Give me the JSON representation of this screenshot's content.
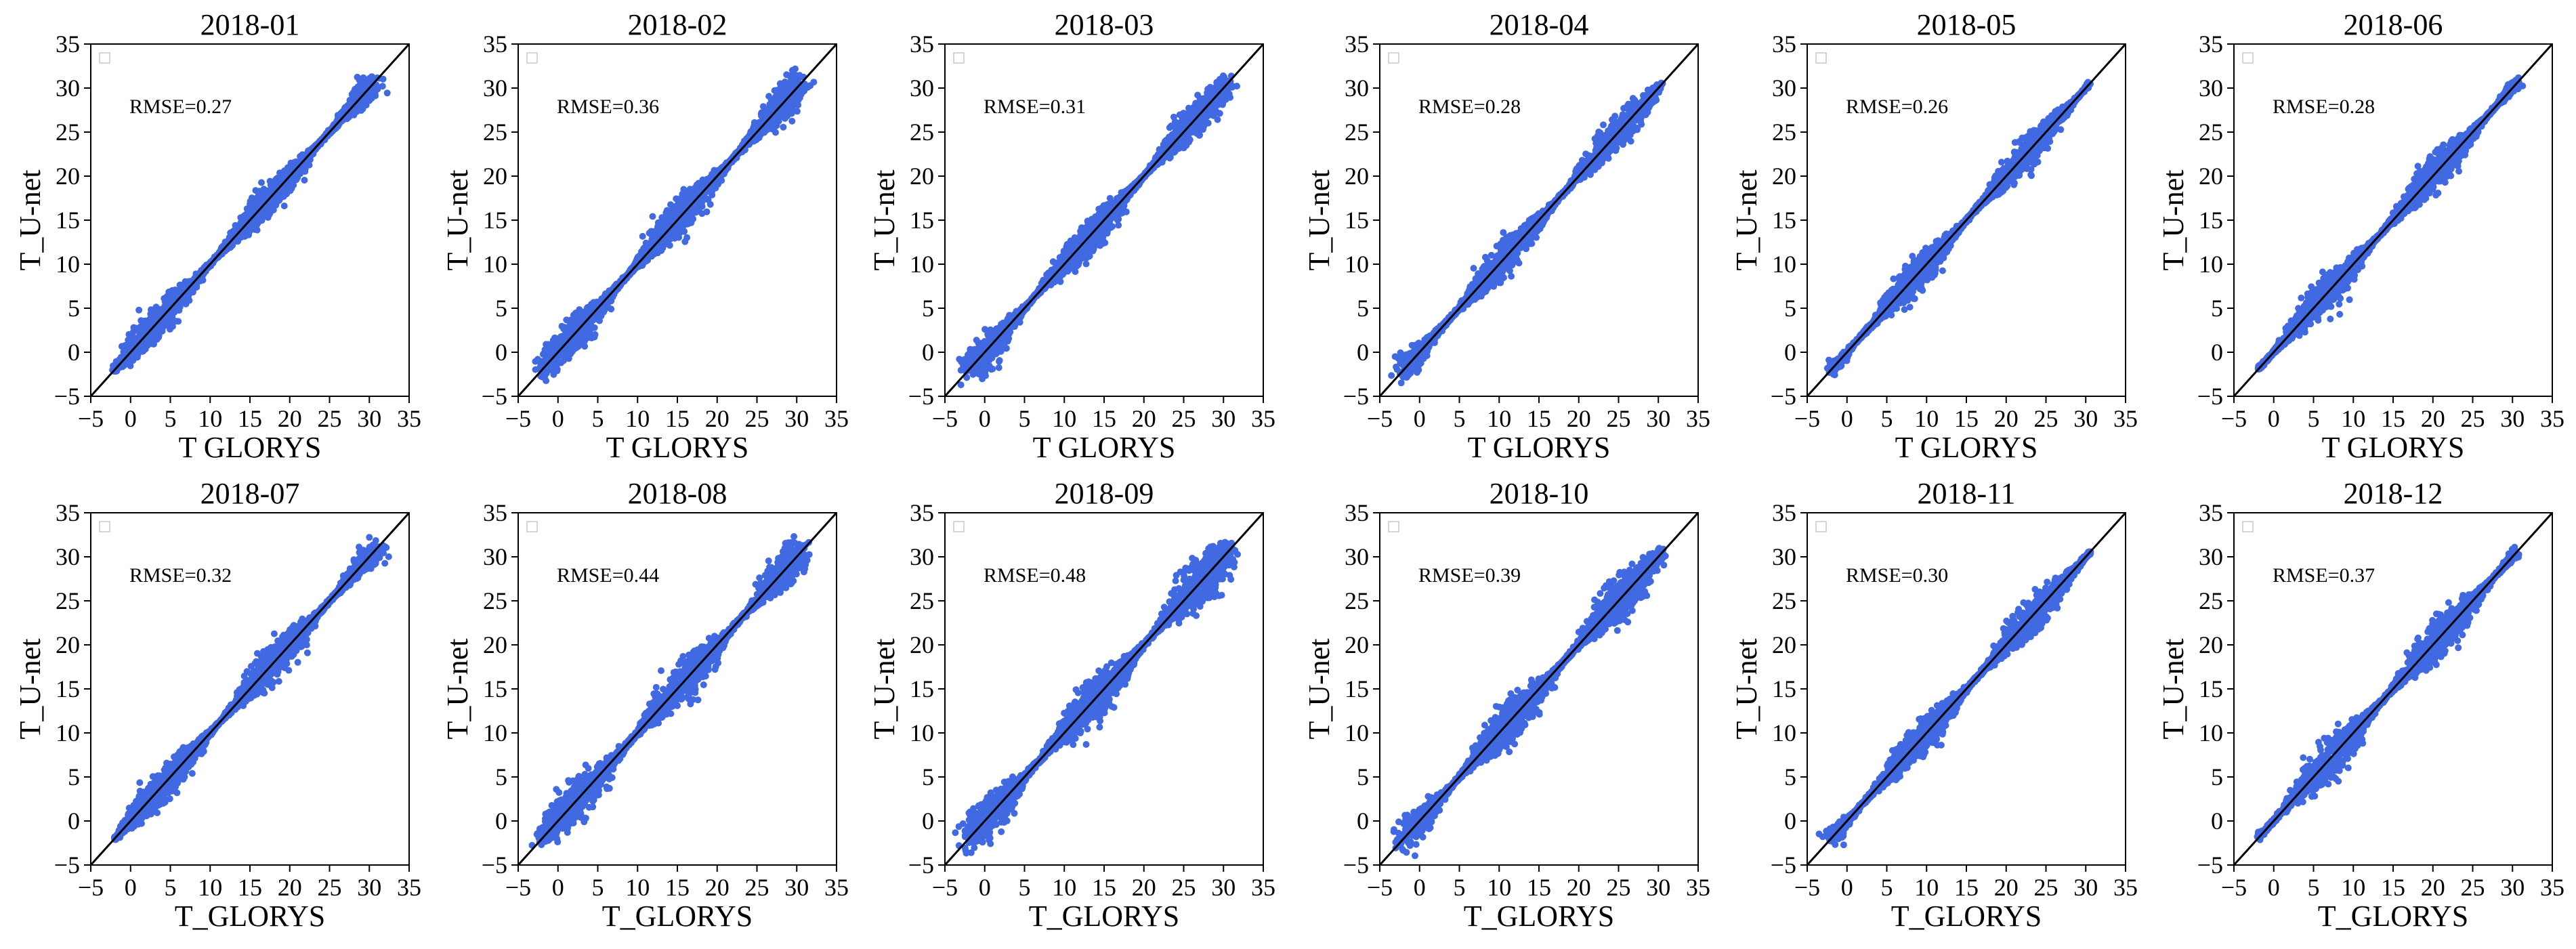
{
  "figure": {
    "colors": {
      "point": "#4169e1",
      "identity_line": "#000000",
      "axes": "#000000"
    }
  },
  "chart_data": [
    {
      "type": "scatter",
      "title": "2018-01",
      "xlabel": "T  GLORYS",
      "ylabel": "T_U-net",
      "annotation": "RMSE=0.27",
      "xlim": [
        -5,
        35
      ],
      "ylim": [
        -5,
        35
      ],
      "xticks": [
        "−5",
        "0",
        "5",
        "10",
        "15",
        "20",
        "25",
        "30",
        "35"
      ],
      "yticks": [
        "−5",
        "0",
        "5",
        "10",
        "15",
        "20",
        "25",
        "30",
        "35"
      ],
      "rmse": 0.27,
      "data_range": [
        -2,
        30.5
      ],
      "reference_line": "y = x",
      "legend": "top-left (empty)",
      "grid": false
    },
    {
      "type": "scatter",
      "title": "2018-02",
      "xlabel": "T  GLORYS",
      "ylabel": "T_U-net",
      "annotation": "RMSE=0.36",
      "xlim": [
        -5,
        35
      ],
      "ylim": [
        -5,
        35
      ],
      "xticks": [
        "−5",
        "0",
        "5",
        "10",
        "15",
        "20",
        "25",
        "30",
        "35"
      ],
      "yticks": [
        "−5",
        "0",
        "5",
        "10",
        "15",
        "20",
        "25",
        "30",
        "35"
      ],
      "rmse": 0.36,
      "data_range": [
        -2,
        30.5
      ],
      "reference_line": "y = x",
      "legend": "top-left (empty)",
      "grid": false
    },
    {
      "type": "scatter",
      "title": "2018-03",
      "xlabel": "T  GLORYS",
      "ylabel": "T_U-net",
      "annotation": "RMSE=0.31",
      "xlim": [
        -5,
        35
      ],
      "ylim": [
        -5,
        35
      ],
      "xticks": [
        "−5",
        "0",
        "5",
        "10",
        "15",
        "20",
        "25",
        "30",
        "35"
      ],
      "yticks": [
        "−5",
        "0",
        "5",
        "10",
        "15",
        "20",
        "25",
        "30",
        "35"
      ],
      "rmse": 0.31,
      "data_range": [
        -2,
        30.5
      ],
      "reference_line": "y = x",
      "legend": "top-left (empty)",
      "grid": false
    },
    {
      "type": "scatter",
      "title": "2018-04",
      "xlabel": "T  GLORYS",
      "ylabel": "T_U-net",
      "annotation": "RMSE=0.28",
      "xlim": [
        -5,
        35
      ],
      "ylim": [
        -5,
        35
      ],
      "xticks": [
        "−5",
        "0",
        "5",
        "10",
        "15",
        "20",
        "25",
        "30",
        "35"
      ],
      "yticks": [
        "−5",
        "0",
        "5",
        "10",
        "15",
        "20",
        "25",
        "30",
        "35"
      ],
      "rmse": 0.28,
      "data_range": [
        -2,
        30.5
      ],
      "reference_line": "y = x",
      "legend": "top-left (empty)",
      "grid": false
    },
    {
      "type": "scatter",
      "title": "2018-05",
      "xlabel": "T  GLORYS",
      "ylabel": "T_U-net",
      "annotation": "RMSE=0.26",
      "xlim": [
        -5,
        35
      ],
      "ylim": [
        -5,
        35
      ],
      "xticks": [
        "−5",
        "0",
        "5",
        "10",
        "15",
        "20",
        "25",
        "30",
        "35"
      ],
      "yticks": [
        "−5",
        "0",
        "5",
        "10",
        "15",
        "20",
        "25",
        "30",
        "35"
      ],
      "rmse": 0.26,
      "data_range": [
        -2,
        30.5
      ],
      "reference_line": "y = x",
      "legend": "top-left (empty)",
      "grid": false
    },
    {
      "type": "scatter",
      "title": "2018-06",
      "xlabel": "T  GLORYS",
      "ylabel": "T_U-net",
      "annotation": "RMSE=0.28",
      "xlim": [
        -5,
        35
      ],
      "ylim": [
        -5,
        35
      ],
      "xticks": [
        "−5",
        "0",
        "5",
        "10",
        "15",
        "20",
        "25",
        "30",
        "35"
      ],
      "yticks": [
        "−5",
        "0",
        "5",
        "10",
        "15",
        "20",
        "25",
        "30",
        "35"
      ],
      "rmse": 0.28,
      "data_range": [
        -2,
        30.5
      ],
      "reference_line": "y = x",
      "legend": "top-left (empty)",
      "grid": false
    },
    {
      "type": "scatter",
      "title": "2018-07",
      "xlabel": "T_GLORYS",
      "ylabel": "T_U-net",
      "annotation": "RMSE=0.32",
      "xlim": [
        -5,
        35
      ],
      "ylim": [
        -5,
        35
      ],
      "xticks": [
        "−5",
        "0",
        "5",
        "10",
        "15",
        "20",
        "25",
        "30",
        "35"
      ],
      "yticks": [
        "−5",
        "0",
        "5",
        "10",
        "15",
        "20",
        "25",
        "30",
        "35"
      ],
      "rmse": 0.32,
      "data_range": [
        -2,
        31
      ],
      "reference_line": "y = x",
      "legend": "top-left (empty)",
      "grid": false
    },
    {
      "type": "scatter",
      "title": "2018-08",
      "xlabel": "T_GLORYS",
      "ylabel": "T_U-net",
      "annotation": "RMSE=0.44",
      "xlim": [
        -5,
        35
      ],
      "ylim": [
        -5,
        35
      ],
      "xticks": [
        "−5",
        "0",
        "5",
        "10",
        "15",
        "20",
        "25",
        "30",
        "35"
      ],
      "yticks": [
        "−5",
        "0",
        "5",
        "10",
        "15",
        "20",
        "25",
        "30",
        "35"
      ],
      "rmse": 0.44,
      "data_range": [
        -2,
        30.5
      ],
      "reference_line": "y = x",
      "legend": "top-left (empty)",
      "grid": false
    },
    {
      "type": "scatter",
      "title": "2018-09",
      "xlabel": "T_GLORYS",
      "ylabel": "T_U-net",
      "annotation": "RMSE=0.48",
      "xlim": [
        -5,
        35
      ],
      "ylim": [
        -5,
        35
      ],
      "xticks": [
        "−5",
        "0",
        "5",
        "10",
        "15",
        "20",
        "25",
        "30",
        "35"
      ],
      "yticks": [
        "−5",
        "0",
        "5",
        "10",
        "15",
        "20",
        "25",
        "30",
        "35"
      ],
      "rmse": 0.48,
      "data_range": [
        -2,
        30.5
      ],
      "reference_line": "y = x",
      "legend": "top-left (empty)",
      "grid": false
    },
    {
      "type": "scatter",
      "title": "2018-10",
      "xlabel": "T_GLORYS",
      "ylabel": "T_U-net",
      "annotation": "RMSE=0.39",
      "xlim": [
        -5,
        35
      ],
      "ylim": [
        -5,
        35
      ],
      "xticks": [
        "−5",
        "0",
        "5",
        "10",
        "15",
        "20",
        "25",
        "30",
        "35"
      ],
      "yticks": [
        "−5",
        "0",
        "5",
        "10",
        "15",
        "20",
        "25",
        "30",
        "35"
      ],
      "rmse": 0.39,
      "data_range": [
        -2,
        30.5
      ],
      "reference_line": "y = x",
      "legend": "top-left (empty)",
      "grid": false
    },
    {
      "type": "scatter",
      "title": "2018-11",
      "xlabel": "T_GLORYS",
      "ylabel": "T_U-net",
      "annotation": "RMSE=0.30",
      "xlim": [
        -5,
        35
      ],
      "ylim": [
        -5,
        35
      ],
      "xticks": [
        "−5",
        "0",
        "5",
        "10",
        "15",
        "20",
        "25",
        "30",
        "35"
      ],
      "yticks": [
        "−5",
        "0",
        "5",
        "10",
        "15",
        "20",
        "25",
        "30",
        "35"
      ],
      "rmse": 0.3,
      "data_range": [
        -2,
        30.5
      ],
      "reference_line": "y = x",
      "legend": "top-left (empty)",
      "grid": false
    },
    {
      "type": "scatter",
      "title": "2018-12",
      "xlabel": "T_GLORYS",
      "ylabel": "T_U-net",
      "annotation": "RMSE=0.37",
      "xlim": [
        -5,
        35
      ],
      "ylim": [
        -5,
        35
      ],
      "xticks": [
        "−5",
        "0",
        "5",
        "10",
        "15",
        "20",
        "25",
        "30",
        "35"
      ],
      "yticks": [
        "−5",
        "0",
        "5",
        "10",
        "15",
        "20",
        "25",
        "30",
        "35"
      ],
      "rmse": 0.37,
      "data_range": [
        -2,
        30.5
      ],
      "reference_line": "y = x",
      "legend": "top-left (empty)",
      "grid": false
    }
  ]
}
